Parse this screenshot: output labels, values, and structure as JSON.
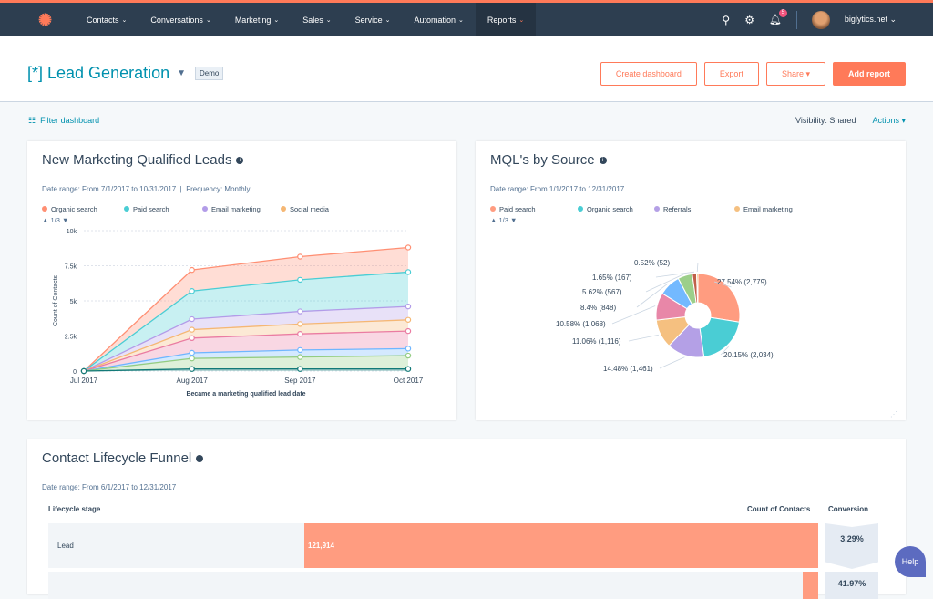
{
  "nav": {
    "items": [
      "Contacts",
      "Conversations",
      "Marketing",
      "Sales",
      "Service",
      "Automation",
      "Reports"
    ],
    "active": "Reports",
    "notifications": "5",
    "account": "biglytics.net"
  },
  "header": {
    "title": "[*] Lead Generation",
    "tag": "Demo",
    "buttons": {
      "create": "Create dashboard",
      "export": "Export",
      "share": "Share",
      "add": "Add report"
    }
  },
  "toolbar": {
    "filter": "Filter dashboard",
    "visibility_label": "Visibility:",
    "visibility_value": "Shared",
    "actions": "Actions"
  },
  "colors": {
    "accent": "#ff7a59",
    "link": "#0091ae",
    "nav": "#2d3e50"
  },
  "mql_card": {
    "title": "New Marketing Qualified Leads",
    "date_range": "Date range: From 7/1/2017 to 10/31/2017",
    "frequency": "Frequency: Monthly",
    "pager": "1/3"
  },
  "source_card": {
    "title": "MQL's by Source",
    "date_range": "Date range: From 1/1/2017 to 12/31/2017",
    "pager": "1/3"
  },
  "funnel": {
    "title": "Contact Lifecycle Funnel",
    "date_range": "Date range: From 6/1/2017 to 12/31/2017",
    "col_stage": "Lifecycle stage",
    "col_count": "Count of Contacts",
    "col_conv": "Conversion",
    "rows": [
      {
        "stage": "Lead",
        "count": "121,914",
        "conversion": "3.29%"
      },
      {
        "stage": "",
        "count": "",
        "conversion": "41.97%"
      }
    ]
  },
  "help": "Help",
  "chart_data": [
    {
      "type": "area",
      "stacked": true,
      "x": [
        "Jul 2017",
        "Aug 2017",
        "Sep 2017",
        "Oct 2017"
      ],
      "xlabel": "Became a marketing qualified lead date",
      "ylabel": "Count of Contacts",
      "ylim": [
        0,
        10000
      ],
      "yticks": [
        "0",
        "2.5k",
        "5k",
        "7.5k",
        "10k"
      ],
      "grid": true,
      "legend": "top",
      "series": [
        {
          "name": "Organic search",
          "color": "#ff8f73",
          "values": [
            0,
            1500,
            1650,
            1750
          ]
        },
        {
          "name": "Paid search",
          "color": "#4acdd4",
          "values": [
            0,
            2000,
            2250,
            2450
          ]
        },
        {
          "name": "Email marketing",
          "color": "#b29ce8",
          "values": [
            0,
            750,
            900,
            950
          ]
        },
        {
          "name": "Social media",
          "color": "#f5b774",
          "values": [
            0,
            600,
            700,
            800
          ]
        },
        {
          "color": "#ea7ca2",
          "values": [
            0,
            1050,
            1150,
            1250
          ]
        },
        {
          "color": "#6fb6ff",
          "values": [
            0,
            400,
            500,
            500
          ]
        },
        {
          "color": "#93cc82",
          "values": [
            0,
            750,
            850,
            950
          ]
        },
        {
          "color": "#137a78",
          "values": [
            0,
            150,
            150,
            150
          ]
        }
      ]
    },
    {
      "type": "pie",
      "donut": true,
      "legend": "top",
      "legend_entries": [
        "Paid search",
        "Organic search",
        "Referrals",
        "Email marketing"
      ],
      "slices": [
        {
          "label": "27.54% (2,779)",
          "value": 2779,
          "color": "#ff9c80"
        },
        {
          "label": "20.15% (2,034)",
          "value": 2034,
          "color": "#4acdd4"
        },
        {
          "label": "14.48% (1,461)",
          "value": 1461,
          "color": "#b4a0e6"
        },
        {
          "label": "11.06% (1,116)",
          "value": 1116,
          "color": "#f5c080"
        },
        {
          "label": "10.58% (1,068)",
          "value": 1068,
          "color": "#e887a8"
        },
        {
          "label": "8.4% (848)",
          "value": 848,
          "color": "#73b9ff"
        },
        {
          "label": "5.62% (567)",
          "value": 567,
          "color": "#9ccf8a"
        },
        {
          "label": "1.65% (167)",
          "value": 167,
          "color": "#c0604a"
        },
        {
          "label": "0.52% (52)",
          "value": 52,
          "color": "#f5a623"
        }
      ]
    }
  ]
}
